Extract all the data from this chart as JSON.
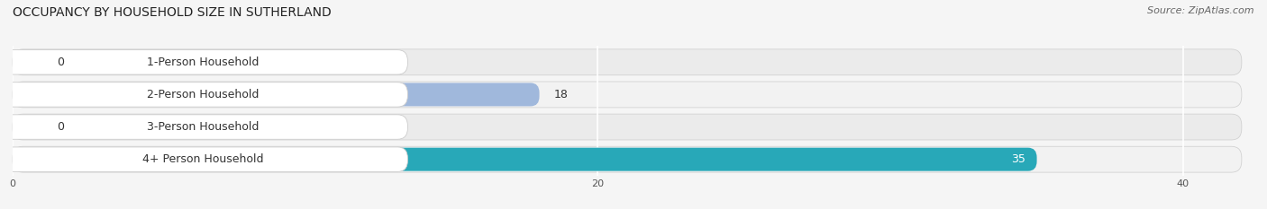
{
  "title": "OCCUPANCY BY HOUSEHOLD SIZE IN SUTHERLAND",
  "source": "Source: ZipAtlas.com",
  "categories": [
    "1-Person Household",
    "2-Person Household",
    "3-Person Household",
    "4+ Person Household"
  ],
  "values": [
    0,
    18,
    0,
    35
  ],
  "bar_colors": [
    "#f0a0a8",
    "#a0b8dc",
    "#c0a8cc",
    "#28a8b8"
  ],
  "xlim": [
    0,
    42
  ],
  "xticks": [
    0,
    20,
    40
  ],
  "bar_height": 0.72,
  "row_bg_color": "#e8e8e8",
  "row_stripe_color": "#f0f0f0",
  "title_fontsize": 10,
  "source_fontsize": 8,
  "label_fontsize": 9,
  "value_fontsize": 9
}
